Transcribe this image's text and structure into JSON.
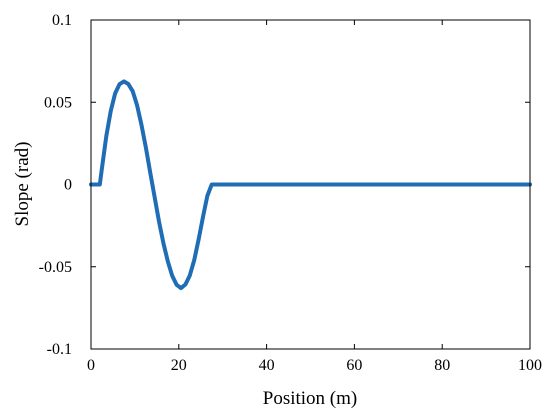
{
  "chart_data": {
    "type": "line",
    "xlabel": "Position (m)",
    "ylabel": "Slope (rad)",
    "xlim": [
      0,
      100
    ],
    "ylim": [
      -0.1,
      0.1
    ],
    "xticks": [
      0,
      20,
      40,
      60,
      80,
      100
    ],
    "xtick_labels": [
      "0",
      "20",
      "40",
      "60",
      "80",
      "100"
    ],
    "yticks": [
      -0.1,
      -0.05,
      0,
      0.05,
      0.1
    ],
    "ytick_labels": [
      "-0.1",
      "-0.05",
      "0",
      "0.05",
      "0.1"
    ],
    "grid": false,
    "series": [
      {
        "color": "#1f6db5",
        "x": [
          0,
          2,
          2.5,
          3.5,
          4.5,
          5.5,
          6.5,
          7.5,
          8.5,
          9.5,
          10.5,
          11.5,
          12.5,
          13.5,
          14.5,
          15.5,
          16.5,
          17.5,
          18.5,
          19.5,
          20.5,
          21.5,
          22.5,
          23.5,
          24.5,
          25.5,
          26.5,
          27.5,
          28.5,
          100
        ],
        "y": [
          0,
          0,
          0.0102,
          0.0298,
          0.0448,
          0.0553,
          0.061,
          0.0627,
          0.0611,
          0.0567,
          0.0481,
          0.0362,
          0.0223,
          0.007,
          -0.0079,
          -0.0225,
          -0.0356,
          -0.0467,
          -0.0555,
          -0.061,
          -0.063,
          -0.0608,
          -0.0553,
          -0.046,
          -0.0335,
          -0.02,
          -0.007,
          0.0,
          0.0,
          0
        ]
      }
    ]
  }
}
